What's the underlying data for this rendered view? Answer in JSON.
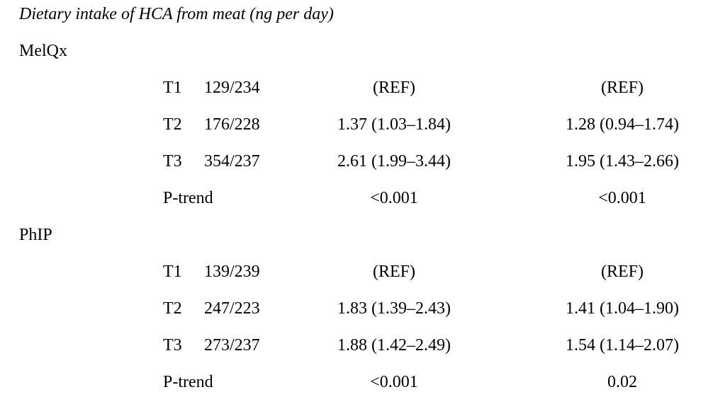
{
  "title": "Dietary intake of HCA from meat (ng per day)",
  "groups": [
    {
      "name": "MelQx",
      "rows": [
        {
          "tertile": "T1",
          "count": "129/234",
          "or_1": "(REF)",
          "or_2": "(REF)"
        },
        {
          "tertile": "T2",
          "count": "176/228",
          "or_1": "1.37 (1.03–1.84)",
          "or_2": "1.28 (0.94–1.74)"
        },
        {
          "tertile": "T3",
          "count": "354/237",
          "or_1": "2.61 (1.99–3.44)",
          "or_2": "1.95 (1.43–2.66)"
        },
        {
          "label": "P-trend",
          "or_1": "<0.001",
          "or_2": "<0.001"
        }
      ]
    },
    {
      "name": "PhIP",
      "rows": [
        {
          "tertile": "T1",
          "count": "139/239",
          "or_1": "(REF)",
          "or_2": "(REF)"
        },
        {
          "tertile": "T2",
          "count": "247/223",
          "or_1": "1.83 (1.39–2.43)",
          "or_2": "1.41 (1.04–1.90)"
        },
        {
          "tertile": "T3",
          "count": "273/237",
          "or_1": "1.88 (1.42–2.49)",
          "or_2": "1.54 (1.14–2.07)"
        },
        {
          "label": "P-trend",
          "or_1": "<0.001",
          "or_2": "0.02"
        }
      ]
    }
  ]
}
